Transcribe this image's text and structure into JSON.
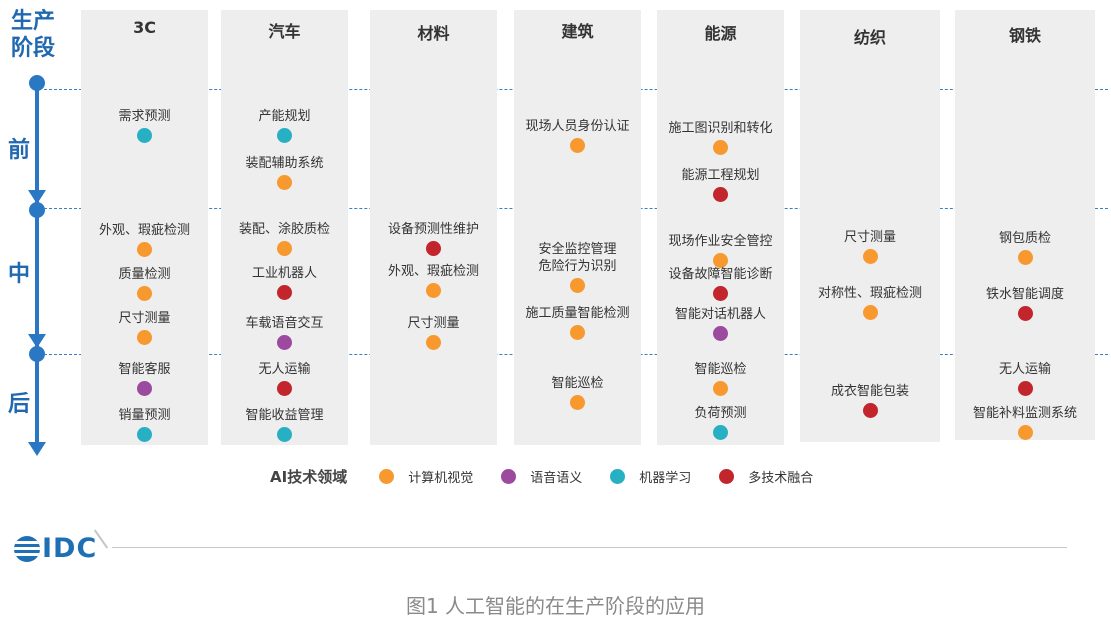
{
  "axis": {
    "title_line1": "生产",
    "title_line2": "阶段",
    "stages": [
      "前",
      "中",
      "后"
    ]
  },
  "colors": {
    "cv": "#f7992e",
    "speech": "#9b4aa0",
    "ml": "#27b0c4",
    "multi": "#c3252d",
    "axis": "#2a78c4",
    "column_bg": "#eeeeee"
  },
  "industries": [
    {
      "name": "3C",
      "items": [
        {
          "stage": "前",
          "label": "需求预测",
          "tech": "ml"
        },
        {
          "stage": "中",
          "label": "外观、瑕疵检测",
          "tech": "cv"
        },
        {
          "stage": "中",
          "label": "质量检测",
          "tech": "cv"
        },
        {
          "stage": "中",
          "label": "尺寸测量",
          "tech": "cv"
        },
        {
          "stage": "后",
          "label": "智能客服",
          "tech": "speech"
        },
        {
          "stage": "后",
          "label": "销量预测",
          "tech": "ml"
        }
      ]
    },
    {
      "name": "汽车",
      "items": [
        {
          "stage": "前",
          "label": "产能规划",
          "tech": "ml"
        },
        {
          "stage": "前",
          "label": "装配辅助系统",
          "tech": "cv"
        },
        {
          "stage": "中",
          "label": "装配、涂胶质检",
          "tech": "cv"
        },
        {
          "stage": "中",
          "label": "工业机器人",
          "tech": "multi"
        },
        {
          "stage": "中",
          "label": "车载语音交互",
          "tech": "speech"
        },
        {
          "stage": "后",
          "label": "无人运输",
          "tech": "multi"
        },
        {
          "stage": "后",
          "label": "智能收益管理",
          "tech": "ml"
        }
      ]
    },
    {
      "name": "材料",
      "items": [
        {
          "stage": "中",
          "label": "设备预测性维护",
          "tech": "multi"
        },
        {
          "stage": "中",
          "label": "外观、瑕疵检测",
          "tech": "cv"
        },
        {
          "stage": "中",
          "label": "尺寸测量",
          "tech": "cv"
        }
      ]
    },
    {
      "name": "建筑",
      "items": [
        {
          "stage": "前",
          "label": "现场人员身份认证",
          "tech": "cv"
        },
        {
          "stage": "中",
          "label": "安全监控管理\n危险行为识别",
          "tech": "cv"
        },
        {
          "stage": "中",
          "label": "施工质量智能检测",
          "tech": "cv"
        },
        {
          "stage": "后",
          "label": "智能巡检",
          "tech": "cv"
        }
      ]
    },
    {
      "name": "能源",
      "items": [
        {
          "stage": "前",
          "label": "施工图识别和转化",
          "tech": "cv"
        },
        {
          "stage": "前",
          "label": "能源工程规划",
          "tech": "multi"
        },
        {
          "stage": "中",
          "label": "现场作业安全管控",
          "tech": "cv"
        },
        {
          "stage": "中",
          "label": "设备故障智能诊断",
          "tech": "multi"
        },
        {
          "stage": "中",
          "label": "智能对话机器人",
          "tech": "speech"
        },
        {
          "stage": "后",
          "label": "智能巡检",
          "tech": "cv"
        },
        {
          "stage": "后",
          "label": "负荷预测",
          "tech": "ml"
        }
      ]
    },
    {
      "name": "纺织",
      "items": [
        {
          "stage": "中",
          "label": "尺寸测量",
          "tech": "cv"
        },
        {
          "stage": "中",
          "label": "对称性、瑕疵检测",
          "tech": "cv"
        },
        {
          "stage": "后",
          "label": "成衣智能包装",
          "tech": "multi"
        }
      ]
    },
    {
      "name": "钢铁",
      "items": [
        {
          "stage": "中",
          "label": "钢包质检",
          "tech": "cv"
        },
        {
          "stage": "中",
          "label": "铁水智能调度",
          "tech": "multi"
        },
        {
          "stage": "后",
          "label": "无人运输",
          "tech": "multi"
        },
        {
          "stage": "后",
          "label": "智能补料监测系统",
          "tech": "cv"
        }
      ]
    }
  ],
  "legend": {
    "title": "AI技术领域",
    "entries": [
      {
        "tech": "cv",
        "label": "计算机视觉"
      },
      {
        "tech": "speech",
        "label": "语音语义"
      },
      {
        "tech": "ml",
        "label": "机器学习"
      },
      {
        "tech": "multi",
        "label": "多技术融合"
      }
    ]
  },
  "logo": {
    "text": "IDC"
  },
  "caption": "图1 人工智能的在生产阶段的应用"
}
